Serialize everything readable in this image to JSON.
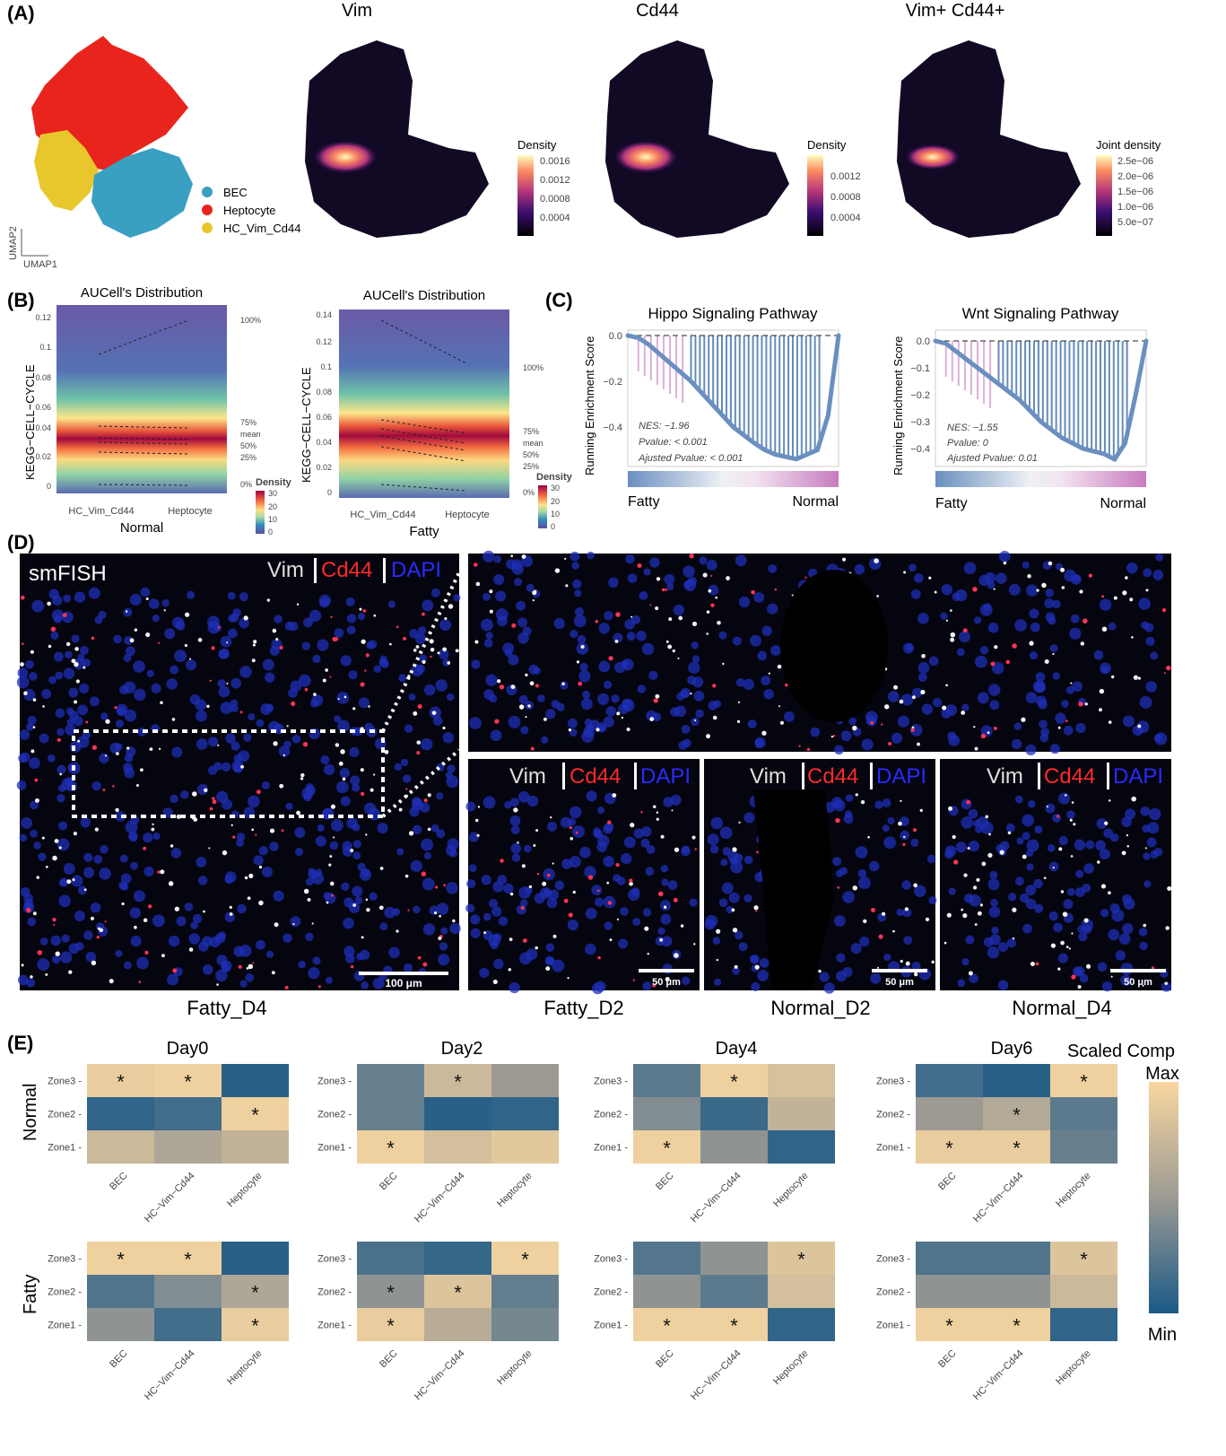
{
  "panels": {
    "A": {
      "label": "(A)",
      "titles": [
        "Vim",
        "Cd44",
        "Vim+ Cd44+"
      ],
      "umap_axes": {
        "y": "UMAP2",
        "x": "UMAP1"
      },
      "legend": [
        {
          "label": "BEC",
          "color": "#3aa0c1"
        },
        {
          "label": "Heptocyte",
          "color": "#e8241c"
        },
        {
          "label": "HC_Vim_Cd44",
          "color": "#e8c72c"
        }
      ],
      "colorbars": [
        {
          "title": "Density",
          "ticks": [
            "0.0016",
            "0.0012",
            "0.0008",
            "0.0004"
          ]
        },
        {
          "title": "Density",
          "ticks": [
            "0.0012",
            "0.0008",
            "0.0004"
          ]
        },
        {
          "title": "Joint density",
          "ticks": [
            "2.5e−06",
            "2.0e−06",
            "1.5e−06",
            "1.0e−06",
            "5.0e−07"
          ]
        }
      ]
    },
    "B": {
      "label": "(B)",
      "plots": [
        {
          "title": "AUCell's Distribution",
          "ylabel": "KEGG−CELL−CYCLE",
          "xlabel": "Normal",
          "yticks": [
            "0.12",
            "0.1",
            "0.08",
            "0.06",
            "0.04",
            "0.02",
            "0"
          ],
          "categories": [
            "HC_Vim_Cd44",
            "Heptocyte"
          ],
          "quantiles": [
            "100%",
            "75%",
            "mean",
            "50%",
            "25%",
            "0%"
          ]
        },
        {
          "title": "AUCell's Distribution",
          "ylabel": "KEGG−CELL−CYCLE",
          "xlabel": "Fatty",
          "yticks": [
            "0.14",
            "0.12",
            "0.1",
            "0.08",
            "0.06",
            "0.04",
            "0.02",
            "0"
          ],
          "categories": [
            "HC_Vim_Cd44",
            "Heptocyte"
          ],
          "quantiles": [
            "100%",
            "75%",
            "mean",
            "50%",
            "25%",
            "0%"
          ]
        }
      ],
      "density_legend": {
        "title": "Density",
        "ticks": [
          "30",
          "20",
          "10",
          "0"
        ]
      }
    },
    "C": {
      "label": "(C)",
      "plots": [
        {
          "title": "Hippo Signaling Pathway",
          "ylabel": "Running Enrichment Score",
          "yticks": [
            "0.0",
            "−0.2",
            "−0.4"
          ],
          "stats": [
            "NES: −1.96",
            "Pvalue: < 0.001",
            "Ajusted Pvalue: < 0.001"
          ],
          "left": "Fatty",
          "right": "Normal"
        },
        {
          "title": "Wnt Signaling Pathway",
          "ylabel": "Running Enrichment Score",
          "yticks": [
            "0.0",
            "−0.1",
            "−0.2",
            "−0.3",
            "−0.4"
          ],
          "stats": [
            "NES: −1.55",
            "Pvalue: 0",
            "Ajusted Pvalue: 0.01"
          ],
          "left": "Fatty",
          "right": "Normal"
        }
      ]
    },
    "D": {
      "label": "(D)",
      "method": "smFISH",
      "stain": {
        "vim": "Vim",
        "cd44": "Cd44",
        "dapi": "DAPI"
      },
      "scale_main": "100 μm",
      "scale_small": "50 μm",
      "captions": [
        "Fatty_D4",
        "Fatty_D2",
        "Normal_D2",
        "Normal_D4"
      ]
    },
    "E": {
      "label": "(E)",
      "days": [
        "Day0",
        "Day2",
        "Day4",
        "Day6"
      ],
      "row_labels": [
        "Normal",
        "Fatty"
      ],
      "zones": [
        "Zone3",
        "Zone2",
        "Zone1"
      ],
      "cells": [
        "BEC",
        "HC−Vim−Cd44",
        "Heptocyte"
      ],
      "colorbar": {
        "title": "Scaled Comp",
        "max": "Max",
        "min": "Min"
      }
    }
  },
  "chart_data": [
    {
      "type": "heatmap",
      "panel": "E",
      "rows": [
        "Zone3",
        "Zone2",
        "Zone1"
      ],
      "columns": [
        "BEC",
        "HC−Vim−Cd44",
        "Heptocyte"
      ],
      "scale": [
        0,
        1
      ],
      "colors": {
        "min": "#1b5a87",
        "mid": "#9c9a93",
        "max": "#f8d7a0"
      },
      "maps": [
        {
          "row": "Normal",
          "day": "Day0",
          "values": [
            [
              0.92,
              0.95,
              0.05
            ],
            [
              0.08,
              0.15,
              0.95
            ],
            [
              0.75,
              0.6,
              0.7
            ]
          ],
          "stars": [
            [
              1,
              1,
              0
            ],
            [
              0,
              0,
              1
            ],
            [
              0,
              0,
              0
            ]
          ]
        },
        {
          "row": "Normal",
          "day": "Day2",
          "values": [
            [
              0.3,
              0.75,
              0.5
            ],
            [
              0.3,
              0.05,
              0.08
            ],
            [
              0.95,
              0.8,
              0.88
            ]
          ],
          "stars": [
            [
              0,
              1,
              0
            ],
            [
              0,
              0,
              0
            ],
            [
              1,
              0,
              0
            ]
          ]
        },
        {
          "row": "Normal",
          "day": "Day4",
          "values": [
            [
              0.25,
              0.95,
              0.82
            ],
            [
              0.4,
              0.12,
              0.7
            ],
            [
              0.95,
              0.45,
              0.08
            ]
          ],
          "stars": [
            [
              0,
              1,
              0
            ],
            [
              0,
              0,
              0
            ],
            [
              1,
              0,
              0
            ]
          ]
        },
        {
          "row": "Normal",
          "day": "Day6",
          "values": [
            [
              0.15,
              0.05,
              0.95
            ],
            [
              0.5,
              0.62,
              0.25
            ],
            [
              0.92,
              0.92,
              0.3
            ]
          ],
          "stars": [
            [
              0,
              0,
              1
            ],
            [
              0,
              1,
              0
            ],
            [
              1,
              1,
              0
            ]
          ]
        },
        {
          "row": "Fatty",
          "day": "Day0",
          "values": [
            [
              0.95,
              0.95,
              0.05
            ],
            [
              0.2,
              0.4,
              0.6
            ],
            [
              0.45,
              0.15,
              0.92
            ]
          ],
          "stars": [
            [
              1,
              1,
              0
            ],
            [
              0,
              0,
              1
            ],
            [
              0,
              0,
              1
            ]
          ]
        },
        {
          "row": "Fatty",
          "day": "Day2",
          "values": [
            [
              0.18,
              0.1,
              0.95
            ],
            [
              0.45,
              0.85,
              0.28
            ],
            [
              0.92,
              0.65,
              0.35
            ]
          ],
          "stars": [
            [
              0,
              0,
              1
            ],
            [
              1,
              1,
              0
            ],
            [
              1,
              0,
              0
            ]
          ]
        },
        {
          "row": "Fatty",
          "day": "Day4",
          "values": [
            [
              0.22,
              0.45,
              0.85
            ],
            [
              0.45,
              0.25,
              0.8
            ],
            [
              0.95,
              0.95,
              0.08
            ]
          ],
          "stars": [
            [
              0,
              0,
              1
            ],
            [
              0,
              0,
              0
            ],
            [
              1,
              1,
              0
            ]
          ]
        },
        {
          "row": "Fatty",
          "day": "Day6",
          "values": [
            [
              0.2,
              0.2,
              0.85
            ],
            [
              0.45,
              0.45,
              0.75
            ],
            [
              0.95,
              0.95,
              0.08
            ]
          ],
          "stars": [
            [
              0,
              0,
              1
            ],
            [
              0,
              0,
              0
            ],
            [
              1,
              1,
              0
            ]
          ]
        }
      ]
    },
    {
      "type": "line",
      "panel": "C",
      "title": "Hippo Signaling Pathway",
      "ylabel": "Running Enrichment Score",
      "ylim": [
        -0.55,
        0.02
      ],
      "x": [
        0,
        0.05,
        0.1,
        0.2,
        0.3,
        0.4,
        0.5,
        0.6,
        0.65,
        0.7,
        0.8,
        0.9,
        0.95,
        1.0
      ],
      "y": [
        0,
        -0.01,
        -0.04,
        -0.12,
        -0.2,
        -0.3,
        -0.4,
        -0.47,
        -0.5,
        -0.52,
        -0.54,
        -0.5,
        -0.35,
        0
      ]
    },
    {
      "type": "line",
      "panel": "C",
      "title": "Wnt Signaling Pathway",
      "ylabel": "Running Enrichment Score",
      "ylim": [
        -0.45,
        0.02
      ],
      "x": [
        0,
        0.05,
        0.1,
        0.2,
        0.3,
        0.4,
        0.5,
        0.6,
        0.7,
        0.8,
        0.85,
        0.9,
        0.95,
        1.0
      ],
      "y": [
        0,
        -0.01,
        -0.04,
        -0.1,
        -0.16,
        -0.22,
        -0.3,
        -0.36,
        -0.4,
        -0.42,
        -0.44,
        -0.38,
        -0.2,
        0
      ]
    }
  ]
}
